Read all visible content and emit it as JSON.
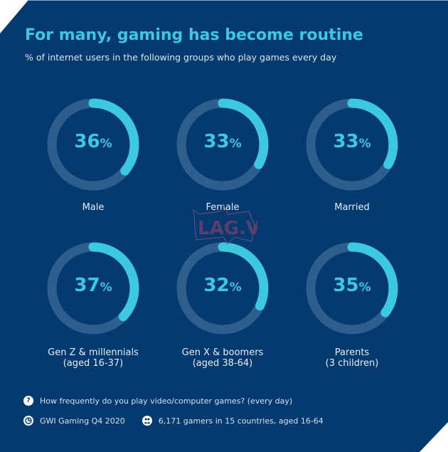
{
  "header": {
    "title": "For many, gaming has become routine",
    "subtitle": "% of internet users in the following groups who play games every day"
  },
  "colors": {
    "background": "#043a70",
    "accent": "#3cc8df",
    "track": "#2d5e8e",
    "text": "#e6edf5"
  },
  "chart_data": {
    "type": "donut",
    "title": "For many, gaming has become routine",
    "subtitle": "% of internet users in the following groups who play games every day",
    "unit": "%",
    "categories": [
      "Male",
      "Female",
      "Married",
      "Gen Z & millennials (aged 16-37)",
      "Gen X & boomers (aged 38-64)",
      "Parents (3 children)"
    ],
    "values": [
      36,
      33,
      33,
      37,
      32,
      35
    ],
    "items": [
      {
        "label": "Male",
        "sublabel": "",
        "value": 36,
        "display": "36"
      },
      {
        "label": "Female",
        "sublabel": "",
        "value": 33,
        "display": "33"
      },
      {
        "label": "Married",
        "sublabel": "",
        "value": 33,
        "display": "33"
      },
      {
        "label": "Gen Z & millennials",
        "sublabel": "(aged 16-37)",
        "value": 37,
        "display": "37"
      },
      {
        "label": "Gen X & boomers",
        "sublabel": "(aged 38-64)",
        "value": 32,
        "display": "32"
      },
      {
        "label": "Parents",
        "sublabel": "(3 children)",
        "value": 35,
        "display": "35"
      }
    ]
  },
  "percent_sign": "%",
  "footer": {
    "question": "How frequently do you play video/computer games? (every day)",
    "source": "GWI Gaming Q4 2020",
    "sample": "6,171 gamers in 15 countries, aged 16-64",
    "icons": [
      "question-icon",
      "gwi-logo-icon",
      "people-icon"
    ]
  },
  "watermark": {
    "text": "LAG.VN"
  }
}
